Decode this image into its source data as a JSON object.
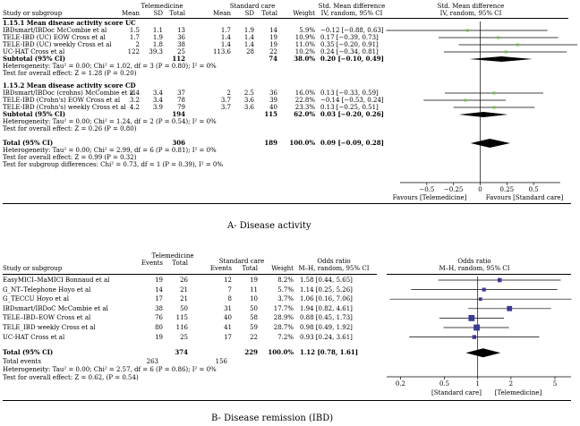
{
  "chart_data": [
    {
      "type": "forest",
      "caption": "A-   Disease activity",
      "header": {
        "study_col": "Study or subgroup",
        "group1": "Telemedicine",
        "group2": "Standard care",
        "cols1": [
          "Mean",
          "SD",
          "Total"
        ],
        "cols2": [
          "Mean",
          "SD",
          "Total"
        ],
        "weight": "Weight",
        "effect_title": "Std. Mean difference",
        "effect_method": "IV, random, 95% CI",
        "plot_title": "Std. Mean difference",
        "plot_method": "IV, random, 95% CI"
      },
      "subgroups": [
        {
          "title": "1.15.1 Mean disease activity score UC",
          "studies": [
            {
              "name": "IBDsmart/IBDoc McCombie et al",
              "m1": "1.5",
              "sd1": "1.1",
              "n1": "13",
              "m2": "1.7",
              "sd2": "1.9",
              "n2": "14",
              "weight": "5.9%",
              "ci": "−0.12 [−0.88, 0.63]",
              "est": -0.12,
              "lo": -0.88,
              "hi": 0.63
            },
            {
              "name": "TELE-IBD (UC) EOW Cross et al",
              "m1": "1.7",
              "sd1": "1.9",
              "n1": "36",
              "m2": "1.4",
              "sd2": "1.4",
              "n2": "19",
              "weight": "10.9%",
              "ci": "0.17 [−0.39, 0.73]",
              "est": 0.17,
              "lo": -0.39,
              "hi": 0.73
            },
            {
              "name": "TELE-IBD (UC) weekly Cross et al",
              "m1": "2",
              "sd1": "1.8",
              "n1": "38",
              "m2": "1.4",
              "sd2": "1.4",
              "n2": "19",
              "weight": "11.0%",
              "ci": "0.35 [−0.20, 0.91]",
              "est": 0.35,
              "lo": -0.2,
              "hi": 0.91
            },
            {
              "name": "UC-HAT Cross et al",
              "m1": "122",
              "sd1": "39.3",
              "n1": "25",
              "m2": "113.6",
              "sd2": "28",
              "n2": "22",
              "weight": "10.2%",
              "ci": "0.24 [−0.34, 0.81]",
              "est": 0.24,
              "lo": -0.34,
              "hi": 0.81
            }
          ],
          "subtotal": {
            "label": "Subtotal (95% CI)",
            "n1": "112",
            "n2": "74",
            "weight": "38.0%",
            "ci": "0.20 [−0.10, 0.49]",
            "est": 0.2,
            "lo": -0.1,
            "hi": 0.49
          },
          "heterogeneity": "Heterogeneity: Tau² = 0.00; Chi² = 1.02, df = 3 (P = 0.80); I² = 0%",
          "overall": "Test for overall effect: Z = 1.28 (P = 0.20)"
        },
        {
          "title": "1.15.2 Mean disease activity score CD",
          "studies": [
            {
              "name": "IBDsmart/IBDoc (crohns) McCombie et al",
              "m1": "2.4",
              "sd1": "3.4",
              "n1": "37",
              "m2": "2",
              "sd2": "2.5",
              "n2": "36",
              "weight": "16.0%",
              "ci": "0.13 [−0.33, 0.59]",
              "est": 0.13,
              "lo": -0.33,
              "hi": 0.59
            },
            {
              "name": "TELE-IBD (Crohn's) EOW Cross et al",
              "m1": "3.2",
              "sd1": "3.4",
              "n1": "78",
              "m2": "3.7",
              "sd2": "3.6",
              "n2": "39",
              "weight": "22.8%",
              "ci": "−0.14 [−0.53, 0.24]",
              "est": -0.14,
              "lo": -0.53,
              "hi": 0.24
            },
            {
              "name": "TELE-IBD (Crohn's) weekly Cross et al",
              "m1": "4.2",
              "sd1": "3.9",
              "n1": "79",
              "m2": "3.7",
              "sd2": "3.6",
              "n2": "40",
              "weight": "23.3%",
              "ci": "0.13 [−0.25, 0.51]",
              "est": 0.13,
              "lo": -0.25,
              "hi": 0.51
            }
          ],
          "subtotal": {
            "label": "Subtotal (95% CI)",
            "n1": "194",
            "n2": "115",
            "weight": "62.0%",
            "ci": "0.03 [−0.20, 0.26]",
            "est": 0.03,
            "lo": -0.2,
            "hi": 0.26
          },
          "heterogeneity": "Heterogeneity: Tau² = 0.00; Chi² = 1.24, df = 2 (P = 0.54); I² = 0%",
          "overall": "Test for overall effect: Z = 0.26 (P = 0.80)"
        }
      ],
      "total": {
        "label": "Total (95% CI)",
        "n1": "306",
        "n2": "189",
        "weight": "100.0%",
        "ci": "0.09 [−0.09, 0.28]",
        "est": 0.09,
        "lo": -0.09,
        "hi": 0.28
      },
      "footer": [
        "Heterogeneity: Tau² = 0.00; Chi² = 2.99, df = 6 (P = 0.81); I² = 0%",
        "Test for overall effect: Z = 0.99 (P = 0.32)",
        "Test for subgroup differences: Chi² = 0.73, df = 1 (P = 0.39), I² = 0%"
      ],
      "axis": {
        "scale": "linear",
        "min": -0.75,
        "max": 0.75,
        "ticks": [
          -0.5,
          -0.25,
          0,
          0.25,
          0.5
        ],
        "tick_labels": [
          "−0.5",
          "−0.25",
          "0",
          "0.25",
          "0.5"
        ]
      },
      "favours": [
        "Favours [Telemedicine]",
        "Favours [Standard care]"
      ],
      "marker_color": "#6dbf4b"
    },
    {
      "type": "forest",
      "caption": "B-   Disease remission (IBD)",
      "header": {
        "study_col": "Study or subgroup",
        "group1": "Telemedicine",
        "group2": "Standard care",
        "cols1": [
          "Events",
          "Total"
        ],
        "cols2": [
          "Events",
          "Total"
        ],
        "weight": "Weight",
        "effect_title": "Odds ratio",
        "effect_method": "M–H, random, 95% CI",
        "plot_title": "Odds ratio",
        "plot_method": "M–H, random, 95% CI"
      },
      "studies": [
        {
          "name": "EasyMICI–MaMICI Bonnaud et al",
          "e1": "19",
          "n1": "26",
          "e2": "12",
          "n2": "19",
          "weight": "8.2%",
          "ci": "1.58 [0.44, 5.65]",
          "est": 1.58,
          "lo": 0.44,
          "hi": 5.65
        },
        {
          "name": "G_NT–Telephone Hoyo et al",
          "e1": "14",
          "n1": "21",
          "e2": "7",
          "n2": "11",
          "weight": "5.7%",
          "ci": "1.14 [0.25, 5.26]",
          "est": 1.14,
          "lo": 0.25,
          "hi": 5.26
        },
        {
          "name": "G_TECCU Hoyo et al",
          "e1": "17",
          "n1": "21",
          "e2": "8",
          "n2": "10",
          "weight": "3.7%",
          "ci": "1.06 [0.16, 7.06]",
          "est": 1.06,
          "lo": 0.16,
          "hi": 7.06
        },
        {
          "name": "IBDsmart/IBDoC McCombie et al",
          "e1": "38",
          "n1": "50",
          "e2": "31",
          "n2": "50",
          "weight": "17.7%",
          "ci": "1.94 [0.82, 4.61]",
          "est": 1.94,
          "lo": 0.82,
          "hi": 4.61
        },
        {
          "name": "TELE–IBD–EOW Cross et al",
          "e1": "76",
          "n1": "115",
          "e2": "40",
          "n2": "58",
          "weight": "28.9%",
          "ci": "0.88 [0.45, 1.73]",
          "est": 0.88,
          "lo": 0.45,
          "hi": 1.73
        },
        {
          "name": "TELE_IBD weekly Cross et al",
          "e1": "80",
          "n1": "116",
          "e2": "41",
          "n2": "59",
          "weight": "28.7%",
          "ci": "0.98 [0.49, 1.92]",
          "est": 0.98,
          "lo": 0.49,
          "hi": 1.92
        },
        {
          "name": "UC-HAT Cross et al",
          "e1": "19",
          "n1": "25",
          "e2": "17",
          "n2": "22",
          "weight": "7.2%",
          "ci": "0.93 [0.24, 3.61]",
          "est": 0.93,
          "lo": 0.24,
          "hi": 3.61
        }
      ],
      "total": {
        "label": "Total (95% CI)",
        "n1": "374",
        "n2": "229",
        "weight": "100.0%",
        "ci": "1.12 [0.78, 1.61]",
        "est": 1.12,
        "lo": 0.78,
        "hi": 1.61
      },
      "total_events": {
        "label": "Total events",
        "e1": "263",
        "e2": "156"
      },
      "footer": [
        "Heterogeneity: Tau² = 0.00; Chi² = 2.57, df = 6 (P = 0.86); I² = 0%",
        "Test for overall effect: Z = 0.62, (P = 0.54)"
      ],
      "axis": {
        "scale": "log",
        "min": 0.15,
        "max": 7,
        "ticks": [
          0.2,
          0.5,
          1,
          2,
          5
        ],
        "tick_labels": [
          "0.2",
          "0.5",
          "1",
          "2",
          "5"
        ]
      },
      "favours": [
        "[Standard care]",
        "[Telemedicine]"
      ],
      "marker_color": "#3b3b9a"
    }
  ]
}
